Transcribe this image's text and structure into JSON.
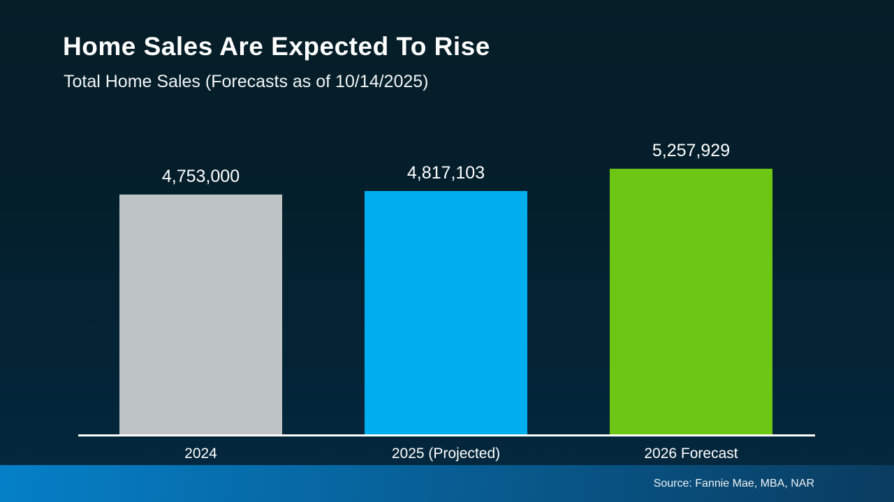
{
  "slide": {
    "title": "Home Sales Are Expected To Rise",
    "subtitle": "Total Home Sales (Forecasts as of 10/14/2025)",
    "source": "Source: Fannie Mae, MBA, NAR"
  },
  "colors": {
    "background_top": "#051d27",
    "background_bottom": "#03283f",
    "baseline": "#ffffff",
    "footer_left": "#0580c8",
    "footer_right": "#0a3c60",
    "bar_2024": "#bec3c4",
    "bar_2025": "#00aeef",
    "bar_2026": "#6cc613"
  },
  "chart_data": {
    "type": "bar",
    "title": "Home Sales Are Expected To Rise",
    "subtitle": "Total Home Sales (Forecasts as of 10/14/2025)",
    "categories": [
      "2024",
      "2025 (Projected)",
      "2026 Forecast"
    ],
    "values": [
      4753000,
      4817103,
      5257929
    ],
    "value_labels": [
      "4,753,000",
      "4,817,103",
      "5,257,929"
    ],
    "bar_colors": [
      "#bec3c4",
      "#00aeef",
      "#6cc613"
    ],
    "xlabel": "",
    "ylabel": "",
    "ylim": [
      0,
      5257929
    ],
    "grid": false,
    "legend": false,
    "axis_line": "white baseline under bars",
    "source_note": "Source: Fannie Mae, MBA, NAR"
  }
}
